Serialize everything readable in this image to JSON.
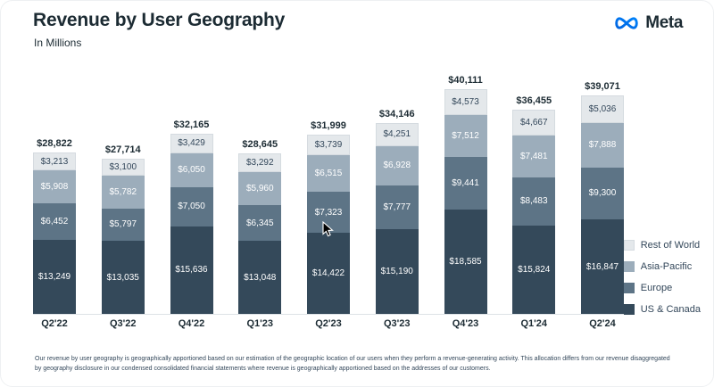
{
  "header": {
    "title": "Revenue by User Geography",
    "subtitle": "In Millions",
    "brand": "Meta"
  },
  "chart_data": {
    "type": "bar",
    "stacked": true,
    "title": "Revenue by User Geography",
    "subtitle": "In Millions",
    "unit": "USD millions",
    "categories": [
      "Q2'22",
      "Q3'22",
      "Q4'22",
      "Q1'23",
      "Q2'23",
      "Q3'23",
      "Q4'23",
      "Q1'24",
      "Q2'24"
    ],
    "series": [
      {
        "name": "US & Canada",
        "color": "#34495a",
        "text_color": "#ffffff",
        "values": [
          13249,
          13035,
          15636,
          13048,
          14422,
          15190,
          18585,
          15824,
          16847
        ]
      },
      {
        "name": "Europe",
        "color": "#5d7486",
        "text_color": "#ffffff",
        "values": [
          6452,
          5797,
          7050,
          6345,
          7323,
          7777,
          9441,
          8483,
          9300
        ]
      },
      {
        "name": "Asia-Pacific",
        "color": "#9cadbb",
        "text_color": "#ffffff",
        "values": [
          5908,
          5782,
          6050,
          5960,
          6515,
          6928,
          7512,
          7481,
          7888
        ]
      },
      {
        "name": "Rest of World",
        "color": "#e4e8eb",
        "text_color": "#33475a",
        "border_color": "#d5dbe0",
        "values": [
          3213,
          3100,
          3429,
          3292,
          3739,
          4251,
          4573,
          4667,
          5036
        ]
      }
    ],
    "totals": [
      28822,
      27714,
      32165,
      28645,
      31999,
      34146,
      40111,
      36455,
      39071
    ],
    "legend_order_top_to_bottom": [
      "Rest of World",
      "Asia-Pacific",
      "Europe",
      "US & Canada"
    ],
    "legend_position": "right",
    "ylim": [
      0,
      40111
    ],
    "grid": false
  },
  "footnote": "Our revenue by user geography is geographically apportioned based on our estimation of the geographic location of our users when they perform a revenue-generating activity. This allocation differs from our revenue disaggregated by geography disclosure in our condensed consolidated financial statements where revenue is geographically apportioned based on the addresses of our customers.",
  "colors": {
    "title_text": "#1c2b33",
    "brand_blue_start": "#0064e0",
    "brand_blue_end": "#0082fb"
  }
}
